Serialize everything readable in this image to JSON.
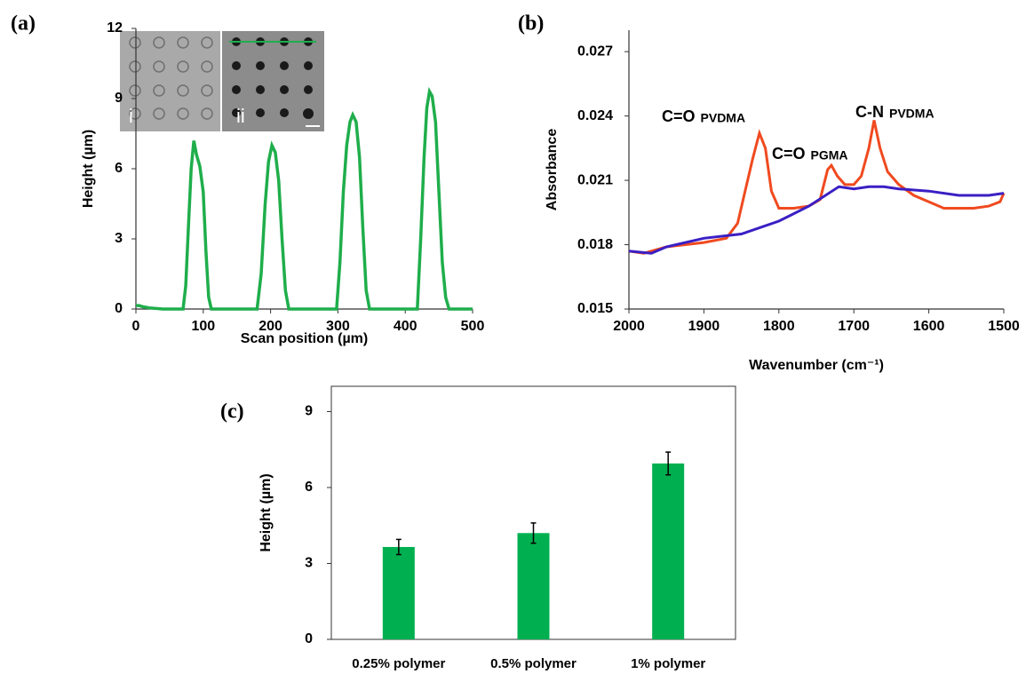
{
  "chart_data": [
    {
      "type": "line",
      "panel": "(a)",
      "x_label": "Scan position (µm)",
      "y_label": "Height (µm)",
      "inset_labels": [
        "i",
        "ii"
      ],
      "color": "#1fae4b",
      "x": [
        0,
        5,
        10,
        20,
        40,
        60,
        70,
        74,
        78,
        82,
        86,
        90,
        95,
        100,
        104,
        108,
        112,
        170,
        180,
        186,
        192,
        197,
        202,
        207,
        212,
        217,
        222,
        227,
        290,
        298,
        303,
        308,
        313,
        318,
        322,
        327,
        332,
        337,
        342,
        347,
        410,
        418,
        423,
        428,
        432,
        436,
        440,
        445,
        450,
        455,
        460,
        465,
        500
      ],
      "values": [
        0.15,
        0.15,
        0.1,
        0.05,
        0,
        0,
        0,
        1,
        3.5,
        6,
        7.2,
        6.6,
        6.1,
        5,
        2.5,
        0.5,
        0,
        0,
        0,
        1.5,
        4.5,
        6.3,
        7,
        6.7,
        5.5,
        3,
        0.8,
        0,
        0,
        0,
        2,
        5,
        7,
        8,
        8.3,
        8,
        6.5,
        3.5,
        0.8,
        0,
        0,
        0,
        3,
        6.5,
        8.6,
        9.3,
        9.1,
        8,
        5,
        2,
        0.5,
        0,
        0
      ],
      "xlim": [
        0,
        500
      ],
      "xticks": [
        0,
        100,
        200,
        300,
        400,
        500
      ],
      "ylim": [
        0,
        12
      ],
      "yticks": [
        0,
        3,
        6,
        9,
        12
      ],
      "grid": false
    },
    {
      "type": "line",
      "panel": "(b)",
      "x_label": "Wavenumber (cm⁻¹)",
      "y_label": "Absorbance",
      "annotations": [
        {
          "text": "C=O",
          "sub": "PVDMA"
        },
        {
          "text": "C=O",
          "sub": "PGMA"
        },
        {
          "text": "C-N",
          "sub": "PVDMA"
        }
      ],
      "series": [
        {
          "color": "#f04a1f",
          "x": [
            2000,
            1980,
            1950,
            1900,
            1870,
            1855,
            1845,
            1835,
            1826,
            1818,
            1810,
            1800,
            1780,
            1760,
            1745,
            1735,
            1730,
            1722,
            1712,
            1700,
            1690,
            1680,
            1673,
            1665,
            1655,
            1640,
            1620,
            1600,
            1580,
            1560,
            1540,
            1520,
            1505,
            1500
          ],
          "values": [
            0.0177,
            0.0176,
            0.0179,
            0.0181,
            0.0183,
            0.019,
            0.0205,
            0.022,
            0.0232,
            0.0225,
            0.0205,
            0.0197,
            0.0197,
            0.0198,
            0.0201,
            0.0215,
            0.0217,
            0.0212,
            0.0208,
            0.0208,
            0.0212,
            0.0225,
            0.0238,
            0.0225,
            0.0214,
            0.0208,
            0.0203,
            0.02,
            0.0197,
            0.0197,
            0.0197,
            0.0198,
            0.02,
            0.0204
          ]
        },
        {
          "color": "#3b1fc4",
          "x": [
            2000,
            1970,
            1950,
            1900,
            1850,
            1800,
            1760,
            1720,
            1700,
            1680,
            1660,
            1640,
            1600,
            1560,
            1520,
            1500
          ],
          "values": [
            0.0177,
            0.0176,
            0.0179,
            0.0183,
            0.0185,
            0.0191,
            0.0198,
            0.0207,
            0.0206,
            0.0207,
            0.0207,
            0.0206,
            0.0205,
            0.0203,
            0.0203,
            0.0204
          ]
        }
      ],
      "xlim": [
        2000,
        1500
      ],
      "xticks": [
        2000,
        1900,
        1800,
        1700,
        1600,
        1500
      ],
      "ylim": [
        0.015,
        0.028
      ],
      "yticks": [
        0.015,
        0.018,
        0.021,
        0.024,
        0.027
      ],
      "grid": false
    },
    {
      "type": "bar",
      "panel": "(c)",
      "y_label": "Height (µm)",
      "color": "#00b050",
      "categories": [
        "0.25% polymer",
        "0.5% polymer",
        "1% polymer"
      ],
      "values": [
        3.65,
        4.2,
        6.95
      ],
      "errors": [
        0.3,
        0.4,
        0.45
      ],
      "ylim": [
        0,
        10
      ],
      "yticks": [
        0,
        3,
        6,
        9
      ],
      "grid": false
    }
  ]
}
